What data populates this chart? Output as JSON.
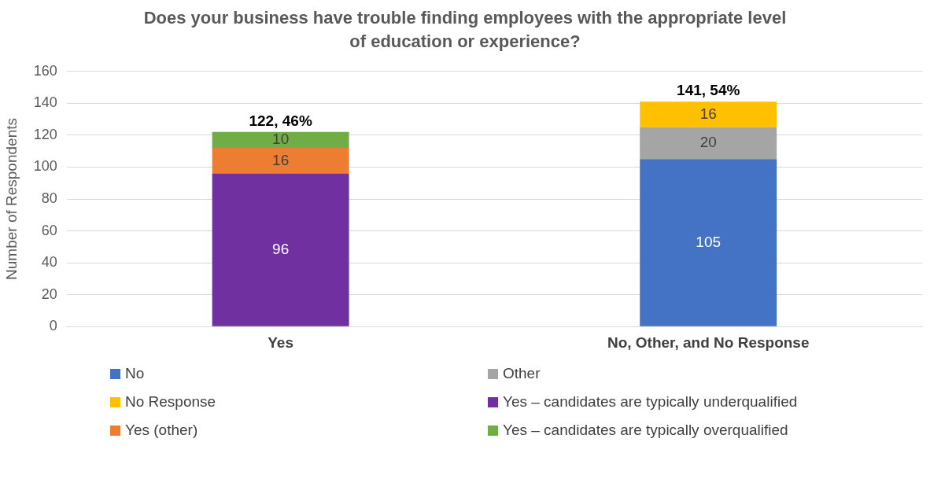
{
  "chart_data": {
    "type": "bar",
    "title": "Does your business have trouble finding employees with the appropriate level of education or experience?",
    "ylabel": "Number of Respondents",
    "categories": [
      "Yes",
      "No, Other, and No Response"
    ],
    "series": [
      {
        "name": "No",
        "color": "#4472c4",
        "values": [
          null,
          105
        ]
      },
      {
        "name": "Other",
        "color": "#a5a5a5",
        "values": [
          null,
          20
        ]
      },
      {
        "name": "No Response",
        "color": "#ffc000",
        "values": [
          null,
          16
        ]
      },
      {
        "name": "Yes – candidates are typically underqualified",
        "color": "#7030a0",
        "values": [
          96,
          null
        ]
      },
      {
        "name": "Yes (other)",
        "color": "#ed7d31",
        "values": [
          16,
          null
        ]
      },
      {
        "name": "Yes – candidates are typically overqualified",
        "color": "#70ad47",
        "values": [
          10,
          null
        ]
      }
    ],
    "stacked": true,
    "ylim": [
      0,
      160
    ],
    "yticks": [
      0,
      20,
      40,
      60,
      80,
      100,
      120,
      140,
      160
    ],
    "grid": "y",
    "legend": "bottom",
    "data_labels": true,
    "totals": [
      "122, 46%",
      "141, 54%"
    ]
  }
}
